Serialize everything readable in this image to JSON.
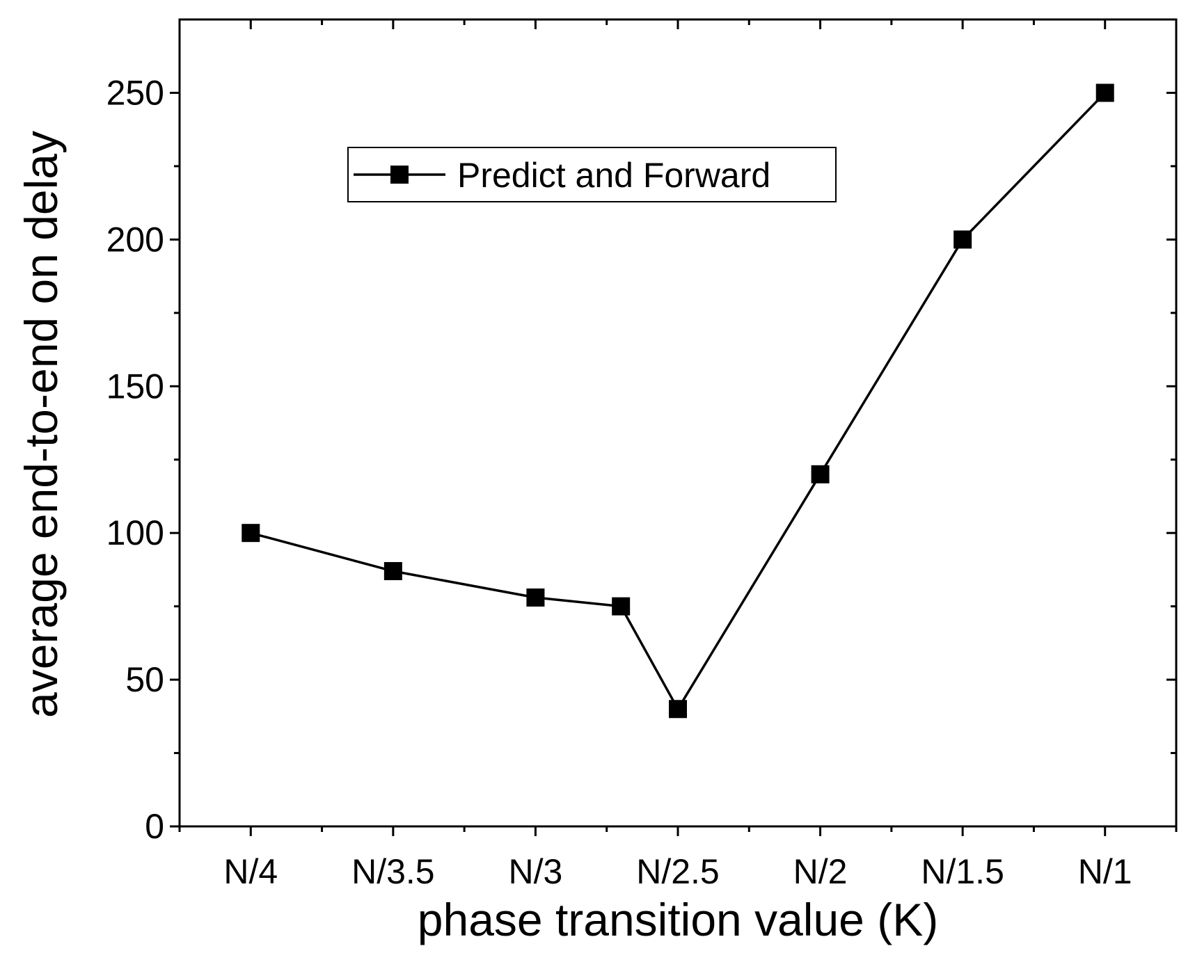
{
  "chart_data": {
    "type": "line",
    "title": "",
    "xlabel": "phase transition value (K)",
    "ylabel": "average end-to-end on delay",
    "categories": [
      "N/4",
      "N/3.5",
      "N/3",
      "N/2.5",
      "N/2",
      "N/1.5",
      "N/1"
    ],
    "x_tick_positions": [
      4.0,
      3.5,
      3.0,
      2.5,
      2.0,
      1.5,
      1.0
    ],
    "xlim": [
      4.25,
      0.75
    ],
    "ylim": [
      0,
      275
    ],
    "yticks": [
      0,
      50,
      100,
      150,
      200,
      250
    ],
    "grid": false,
    "legend": {
      "position": "top-left",
      "entries": [
        "Predict and Forward"
      ]
    },
    "series": [
      {
        "name": "Predict and Forward",
        "marker": "square",
        "color": "#000000",
        "x": [
          4.0,
          3.5,
          3.0,
          2.7,
          2.5,
          2.0,
          1.5,
          1.0
        ],
        "values": [
          100,
          87,
          78,
          75,
          40,
          120,
          200,
          250
        ]
      }
    ]
  }
}
